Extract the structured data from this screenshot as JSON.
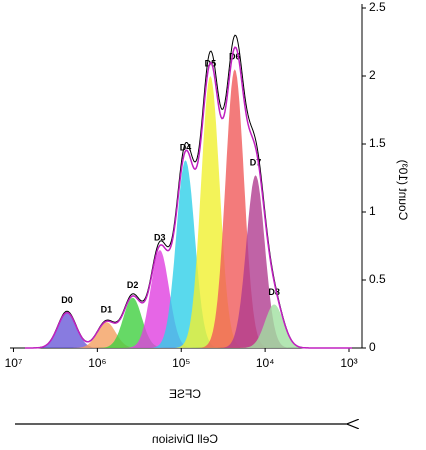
{
  "chart_data": {
    "type": "peaks",
    "x_label": "CFSE",
    "y_label": "Count (10³)",
    "annotation": "Cell Division",
    "log_x": true,
    "xlim": [
      700,
      11000000
    ],
    "xticks": [
      {
        "value": 1000,
        "label": "10³"
      },
      {
        "value": 10000,
        "label": "10⁴"
      },
      {
        "value": 100000,
        "label": "10⁵"
      },
      {
        "value": 1000000,
        "label": "10⁶"
      },
      {
        "value": 10000000,
        "label": "10⁷"
      }
    ],
    "ylim": [
      0,
      2.5
    ],
    "yticks": [
      0,
      0.5,
      1,
      1.5,
      2,
      2.5
    ],
    "peaks": [
      {
        "name": "D0",
        "color": "#6a5ad8",
        "x": 2300000,
        "value": 0.26
      },
      {
        "name": "D1",
        "color": "#f4a060",
        "x": 780000,
        "value": 0.19
      },
      {
        "name": "D2",
        "color": "#40d040",
        "x": 380000,
        "value": 0.37
      },
      {
        "name": "D3",
        "color": "#e040e0",
        "x": 180000,
        "value": 0.72
      },
      {
        "name": "D4",
        "color": "#30d0e8",
        "x": 89000,
        "value": 1.38
      },
      {
        "name": "D5",
        "color": "#f0f030",
        "x": 45000,
        "value": 2.0
      },
      {
        "name": "D6",
        "color": "#f05a5a",
        "x": 23000,
        "value": 2.05
      },
      {
        "name": "D7",
        "color": "#b03c90",
        "x": 13000,
        "value": 1.27
      },
      {
        "name": "D8",
        "color": "#a0e0a0",
        "x": 7800,
        "value": 0.32
      }
    ]
  }
}
